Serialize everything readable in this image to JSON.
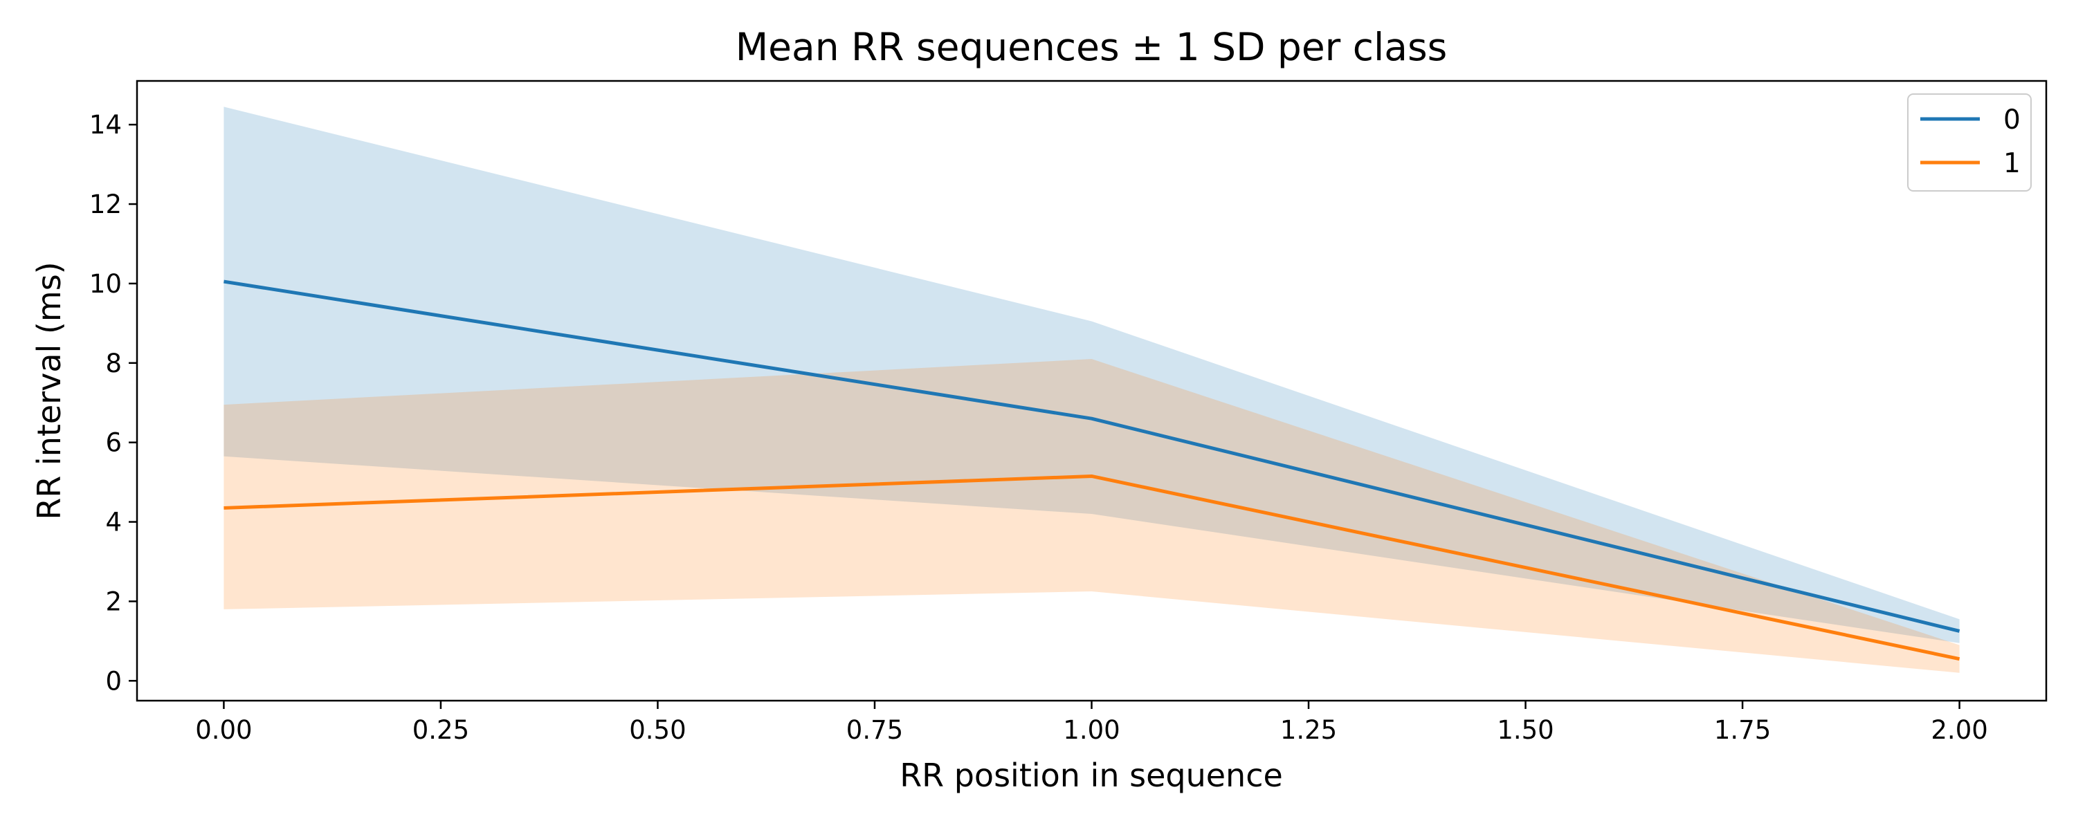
{
  "chart_data": {
    "type": "line",
    "title": "Mean RR sequences ± 1 SD per class",
    "xlabel": "RR position in sequence",
    "ylabel": "RR interval (ms)",
    "xlim": [
      -0.1,
      2.1
    ],
    "ylim": [
      -0.5,
      15.1
    ],
    "x_ticks": [
      0.0,
      0.25,
      0.5,
      0.75,
      1.0,
      1.25,
      1.5,
      1.75,
      2.0
    ],
    "x_tick_labels": [
      "0.00",
      "0.25",
      "0.50",
      "0.75",
      "1.00",
      "1.25",
      "1.50",
      "1.75",
      "2.00"
    ],
    "y_ticks": [
      0,
      2,
      4,
      6,
      8,
      10,
      12,
      14
    ],
    "y_tick_labels": [
      "0",
      "2",
      "4",
      "6",
      "8",
      "10",
      "12",
      "14"
    ],
    "grid": false,
    "legend_position": "top-right",
    "x": [
      0,
      1,
      2
    ],
    "series": [
      {
        "name": "0",
        "color": "#1f77b4",
        "mean": [
          10.05,
          6.6,
          1.25
        ],
        "lower": [
          5.65,
          4.2,
          0.95
        ],
        "upper": [
          14.45,
          9.05,
          1.55
        ]
      },
      {
        "name": "1",
        "color": "#ff7f0e",
        "mean": [
          4.35,
          5.15,
          0.55
        ],
        "lower": [
          1.8,
          2.25,
          0.2
        ],
        "upper": [
          6.95,
          8.1,
          0.9
        ]
      }
    ]
  }
}
